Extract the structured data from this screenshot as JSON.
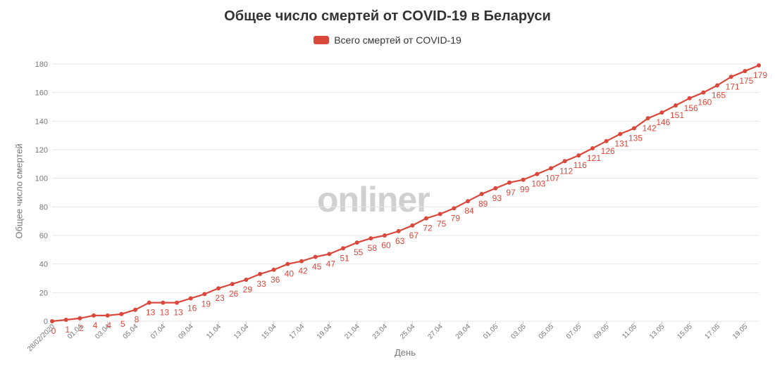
{
  "chart_data": {
    "type": "line",
    "title": "Общее число смертей от COVID-19 в Беларуси",
    "xlabel": "День",
    "ylabel": "Общее число смертей",
    "ylim": [
      0,
      180
    ],
    "yticks": [
      0,
      20,
      40,
      60,
      80,
      100,
      120,
      140,
      160,
      180
    ],
    "grid": "horizontal",
    "legend": "top-center",
    "watermark": "onliner",
    "colors": {
      "line": "#d9483b",
      "grid": "#e6e6e6",
      "axis_text": "#777777",
      "watermark": "#d0d0d0"
    },
    "x_ticks": [
      "28/02/2020",
      "01.04",
      "03.04",
      "05.04",
      "07.04",
      "09.04",
      "11.04",
      "13.04",
      "15.04",
      "17.04",
      "19.04",
      "21.04",
      "23.04",
      "25.04",
      "27.04",
      "29.04",
      "01.05",
      "03.05",
      "05.05",
      "07.05",
      "09.05",
      "11.05",
      "13.05",
      "15.05",
      "17.05",
      "19.05"
    ],
    "series": [
      {
        "name": "Всего смертей от COVID-19",
        "values": [
          0,
          1,
          2,
          4,
          4,
          5,
          8,
          13,
          13,
          13,
          16,
          19,
          23,
          26,
          29,
          33,
          36,
          40,
          42,
          45,
          47,
          51,
          55,
          58,
          60,
          63,
          67,
          72,
          75,
          79,
          84,
          89,
          93,
          97,
          99,
          103,
          107,
          112,
          116,
          121,
          126,
          131,
          135,
          142,
          146,
          151,
          156,
          160,
          165,
          171,
          175,
          179
        ]
      }
    ]
  }
}
